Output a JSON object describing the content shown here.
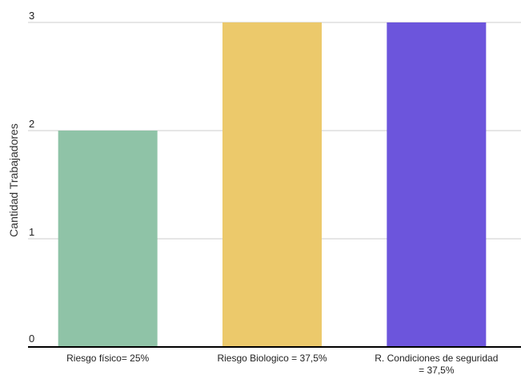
{
  "chart_data": {
    "type": "bar",
    "title": "",
    "xlabel": "",
    "ylabel": "Cantidad Trabajadores",
    "ylim": [
      0,
      3
    ],
    "yticks": [
      0,
      1,
      2,
      3
    ],
    "grid": true,
    "legend": "none",
    "categories": [
      [
        "Riesgo físico= 25%"
      ],
      [
        "Riesgo Biologico = 37,5%"
      ],
      [
        "R. Condiciones de seguridad",
        "= 37,5%"
      ]
    ],
    "values": [
      2,
      3,
      3
    ],
    "colors": [
      "#8fc3a7",
      "#ecc96b",
      "#6c55dc"
    ]
  }
}
